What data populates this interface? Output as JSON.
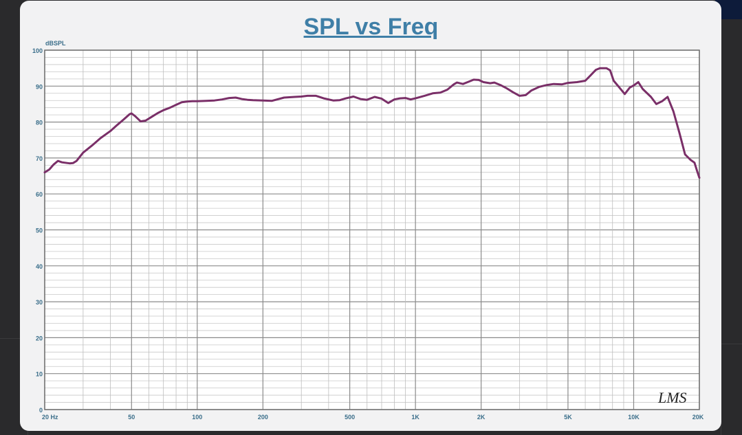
{
  "chart_data": {
    "type": "line",
    "title": "SPL vs Freq",
    "ylabel": "dBSPL",
    "xlabel": "",
    "x_scale": "log",
    "xlim": [
      20,
      20000
    ],
    "ylim": [
      0,
      100
    ],
    "grid": true,
    "watermark": "LMS",
    "x_ticks": [
      {
        "value": 20,
        "label": "20  Hz"
      },
      {
        "value": 50,
        "label": "50"
      },
      {
        "value": 100,
        "label": "100"
      },
      {
        "value": 200,
        "label": "200"
      },
      {
        "value": 500,
        "label": "500"
      },
      {
        "value": 1000,
        "label": "1K"
      },
      {
        "value": 2000,
        "label": "2K"
      },
      {
        "value": 5000,
        "label": "5K"
      },
      {
        "value": 10000,
        "label": "10K"
      },
      {
        "value": 20000,
        "label": "20K"
      }
    ],
    "y_ticks": [
      {
        "value": 0,
        "label": "0"
      },
      {
        "value": 10,
        "label": "10"
      },
      {
        "value": 20,
        "label": "20"
      },
      {
        "value": 30,
        "label": "30"
      },
      {
        "value": 40,
        "label": "40"
      },
      {
        "value": 50,
        "label": "50"
      },
      {
        "value": 60,
        "label": "60"
      },
      {
        "value": 70,
        "label": "70"
      },
      {
        "value": 80,
        "label": "80"
      },
      {
        "value": 90,
        "label": "90"
      },
      {
        "value": 100,
        "label": "100"
      }
    ],
    "series": [
      {
        "color": "#7a2f68",
        "points": [
          [
            20,
            66
          ],
          [
            21,
            66.8
          ],
          [
            22,
            68.2
          ],
          [
            23,
            69.2
          ],
          [
            24,
            68.8
          ],
          [
            26,
            68.5
          ],
          [
            27,
            68.6
          ],
          [
            28,
            69.2
          ],
          [
            30,
            71.5
          ],
          [
            33,
            73.5
          ],
          [
            36,
            75.5
          ],
          [
            40,
            77.5
          ],
          [
            43,
            79.2
          ],
          [
            46,
            80.7
          ],
          [
            49,
            82.2
          ],
          [
            50,
            82.4
          ],
          [
            52,
            81.6
          ],
          [
            55,
            80.2
          ],
          [
            58,
            80.4
          ],
          [
            62,
            81.5
          ],
          [
            66,
            82.5
          ],
          [
            70,
            83.3
          ],
          [
            75,
            84.0
          ],
          [
            80,
            84.8
          ],
          [
            85,
            85.5
          ],
          [
            90,
            85.7
          ],
          [
            95,
            85.8
          ],
          [
            100,
            85.8
          ],
          [
            110,
            85.9
          ],
          [
            120,
            86.0
          ],
          [
            130,
            86.3
          ],
          [
            140,
            86.7
          ],
          [
            150,
            86.8
          ],
          [
            160,
            86.4
          ],
          [
            170,
            86.2
          ],
          [
            180,
            86.1
          ],
          [
            200,
            86.0
          ],
          [
            220,
            85.9
          ],
          [
            250,
            86.8
          ],
          [
            280,
            87.0
          ],
          [
            300,
            87.1
          ],
          [
            320,
            87.3
          ],
          [
            350,
            87.3
          ],
          [
            380,
            86.6
          ],
          [
            420,
            86.0
          ],
          [
            450,
            86.1
          ],
          [
            480,
            86.6
          ],
          [
            520,
            87.1
          ],
          [
            560,
            86.4
          ],
          [
            600,
            86.2
          ],
          [
            650,
            87.0
          ],
          [
            700,
            86.5
          ],
          [
            750,
            85.3
          ],
          [
            800,
            86.3
          ],
          [
            850,
            86.6
          ],
          [
            900,
            86.7
          ],
          [
            950,
            86.3
          ],
          [
            1000,
            86.6
          ],
          [
            1100,
            87.3
          ],
          [
            1200,
            88.0
          ],
          [
            1300,
            88.2
          ],
          [
            1400,
            89.0
          ],
          [
            1500,
            90.5
          ],
          [
            1550,
            91.0
          ],
          [
            1650,
            90.6
          ],
          [
            1750,
            91.2
          ],
          [
            1850,
            91.8
          ],
          [
            1950,
            91.7
          ],
          [
            2050,
            91.1
          ],
          [
            2200,
            90.8
          ],
          [
            2300,
            91.0
          ],
          [
            2450,
            90.3
          ],
          [
            2600,
            89.5
          ],
          [
            2800,
            88.3
          ],
          [
            3000,
            87.3
          ],
          [
            3200,
            87.5
          ],
          [
            3400,
            88.8
          ],
          [
            3700,
            89.8
          ],
          [
            4000,
            90.3
          ],
          [
            4300,
            90.6
          ],
          [
            4700,
            90.5
          ],
          [
            5000,
            90.9
          ],
          [
            5500,
            91.1
          ],
          [
            6000,
            91.5
          ],
          [
            6300,
            92.8
          ],
          [
            6700,
            94.5
          ],
          [
            7000,
            95.0
          ],
          [
            7500,
            95.0
          ],
          [
            7800,
            94.4
          ],
          [
            8100,
            91.5
          ],
          [
            8600,
            89.6
          ],
          [
            9100,
            87.8
          ],
          [
            9600,
            89.6
          ],
          [
            10000,
            90.2
          ],
          [
            10500,
            91.1
          ],
          [
            11000,
            89.2
          ],
          [
            12000,
            87.0
          ],
          [
            12700,
            85.0
          ],
          [
            13500,
            85.8
          ],
          [
            14300,
            87.0
          ],
          [
            15200,
            83.0
          ],
          [
            16200,
            77.0
          ],
          [
            17200,
            71.0
          ],
          [
            18200,
            69.5
          ],
          [
            19000,
            68.7
          ],
          [
            19500,
            66.5
          ],
          [
            20000,
            64.5
          ]
        ]
      }
    ]
  }
}
